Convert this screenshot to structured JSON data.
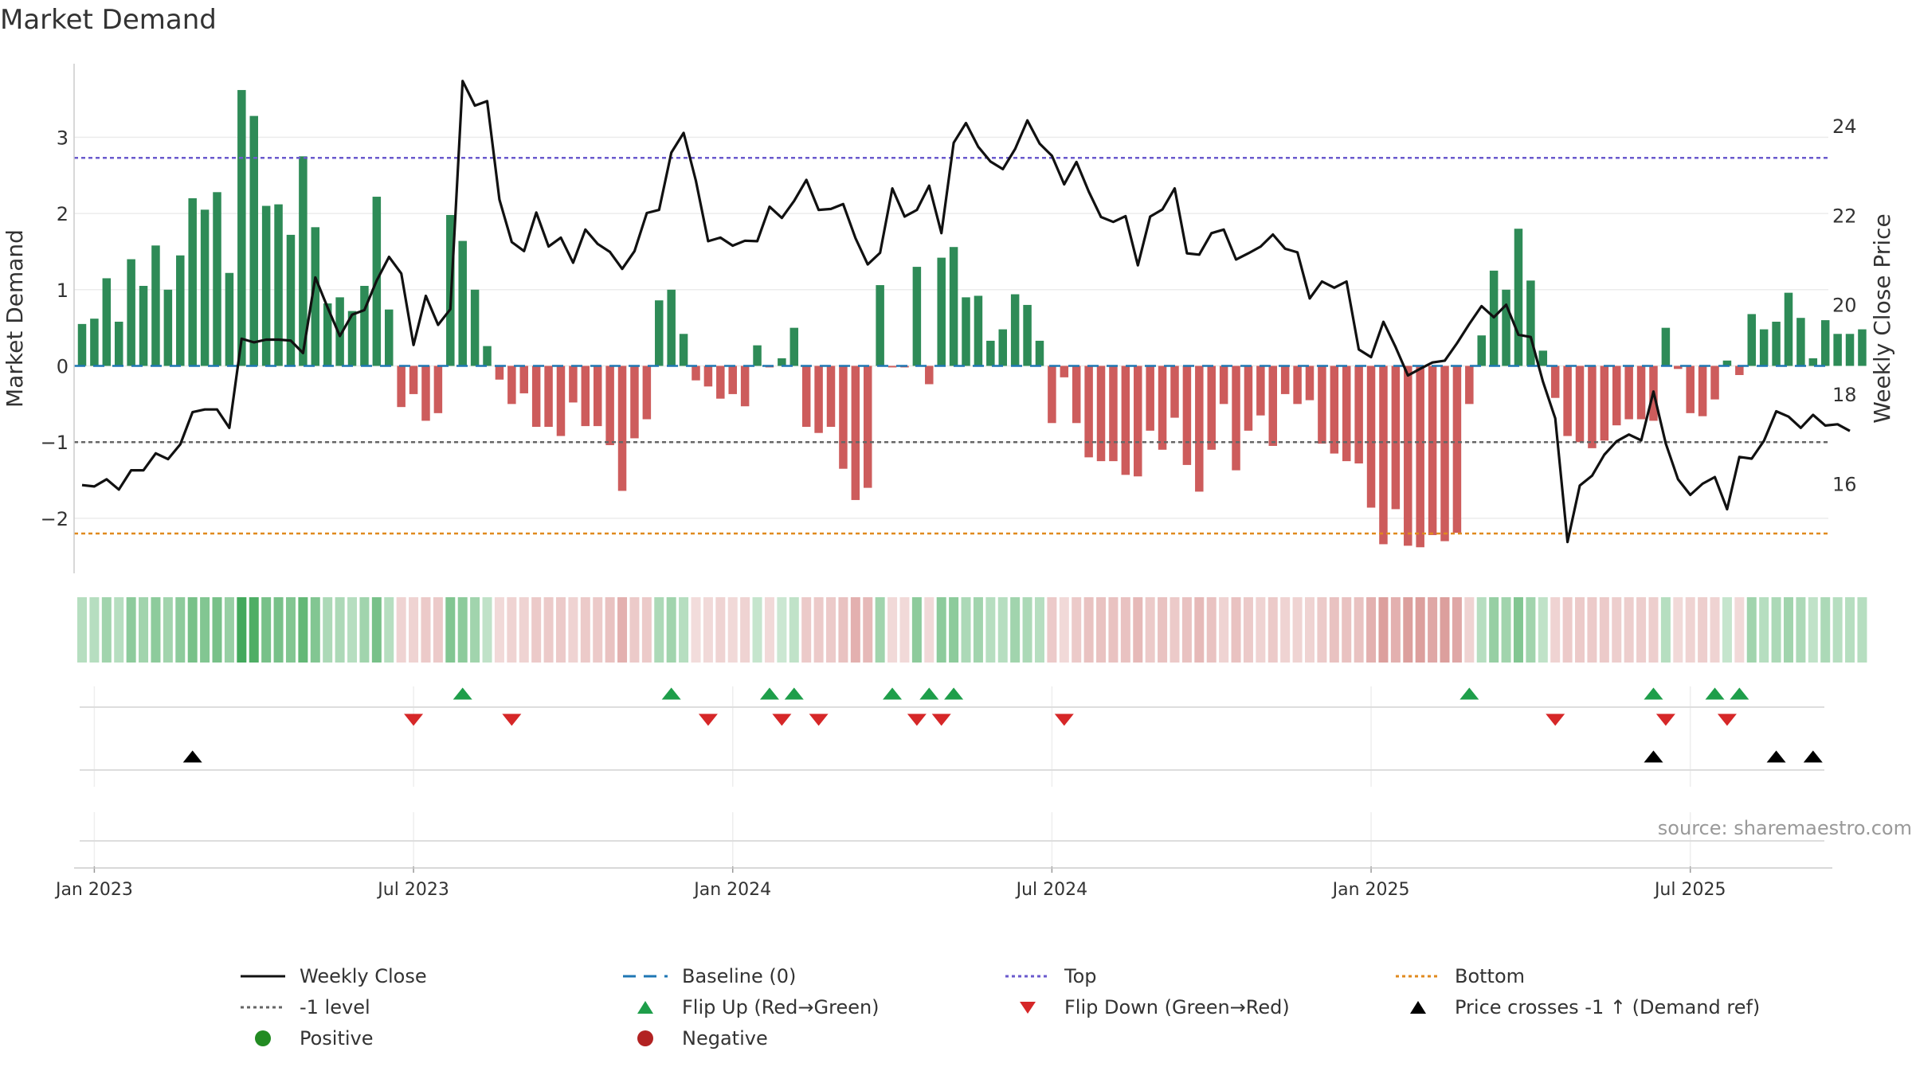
{
  "title": "Market Demand",
  "source": "source: sharemaestro.com",
  "colors": {
    "positive": "#2e8b57",
    "negative": "#cd5c5c",
    "price": "#111111",
    "top": "#6a5acd",
    "bottom": "#e08a1e",
    "minus1": "#666666",
    "baseline": "#1f77b4",
    "flip_up": "#1e9e4a",
    "flip_down": "#d62728",
    "cross": "#000000"
  },
  "legend": [
    {
      "key": "weekly_close",
      "label": "Weekly Close"
    },
    {
      "key": "baseline",
      "label": "Baseline (0)"
    },
    {
      "key": "top",
      "label": "Top"
    },
    {
      "key": "bottom",
      "label": "Bottom"
    },
    {
      "key": "minus1",
      "label": "-1 level"
    },
    {
      "key": "flip_up",
      "label": "Flip Up (Red→Green)"
    },
    {
      "key": "flip_down",
      "label": "Flip Down (Green→Red)"
    },
    {
      "key": "cross",
      "label": "Price crosses -1 ↑ (Demand ref)"
    },
    {
      "key": "positive",
      "label": "Positive"
    },
    {
      "key": "negative",
      "label": "Negative"
    }
  ],
  "chart_data": {
    "type": "bar+line",
    "title": "Market Demand",
    "ylabel": "Market Demand",
    "y2label": "Weekly Close Price",
    "ylim": [
      -2.7,
      3.9
    ],
    "y2lim": [
      14.0,
      25.4
    ],
    "yticks": [
      3,
      2,
      1,
      0,
      -1,
      -2
    ],
    "ytick_labels": [
      "3",
      "2",
      "1",
      "0",
      "−1",
      "−2"
    ],
    "y2ticks": [
      24,
      22,
      20,
      18,
      16
    ],
    "y2tick_labels": [
      "24",
      "22",
      "20",
      "18",
      "16"
    ],
    "xticks": [
      1,
      27,
      53,
      79,
      105,
      131
    ],
    "xtick_labels": [
      "Jan 2023",
      "Jul 2023",
      "Jan 2024",
      "Jul 2024",
      "Jan 2025",
      "Jul 2025"
    ],
    "reference_lines": {
      "top": 2.73,
      "bottom": -2.2,
      "minus1": -1.0,
      "baseline": 0
    },
    "weeks": 145,
    "demand": [
      0.55,
      0.62,
      1.15,
      0.58,
      1.4,
      1.05,
      1.58,
      1.0,
      1.45,
      2.2,
      2.05,
      2.28,
      1.22,
      3.62,
      3.28,
      2.1,
      2.12,
      1.72,
      2.75,
      1.82,
      0.82,
      0.9,
      0.72,
      1.05,
      2.22,
      0.74,
      -0.54,
      -0.37,
      -0.72,
      -0.62,
      1.98,
      1.64,
      1.0,
      0.26,
      -0.18,
      -0.5,
      -0.36,
      -0.8,
      -0.8,
      -0.92,
      -0.48,
      -0.79,
      -0.79,
      -1.04,
      -1.64,
      -0.95,
      -0.7,
      0.86,
      1.0,
      0.42,
      -0.19,
      -0.27,
      -0.43,
      -0.37,
      -0.53,
      0.27,
      -0.02,
      0.1,
      0.5,
      -0.8,
      -0.88,
      -0.8,
      -1.35,
      -1.76,
      -1.6,
      1.06,
      -0.02,
      -0.02,
      1.3,
      -0.24,
      1.42,
      1.56,
      0.9,
      0.92,
      0.33,
      0.48,
      0.94,
      0.8,
      0.33,
      -0.75,
      -0.15,
      -0.75,
      -1.2,
      -1.25,
      -1.25,
      -1.43,
      -1.45,
      -0.85,
      -1.1,
      -0.68,
      -1.3,
      -1.65,
      -1.1,
      -0.5,
      -1.37,
      -0.85,
      -0.65,
      -1.05,
      -0.37,
      -0.5,
      -0.45,
      -1.02,
      -1.15,
      -1.25,
      -1.28,
      -1.86,
      -2.34,
      -1.88,
      -2.36,
      -2.38,
      -2.22,
      -2.3,
      -2.19,
      -0.5,
      0.4,
      1.25,
      1.0,
      1.8,
      1.12,
      0.2,
      -0.42,
      -0.92,
      -1.0,
      -1.08,
      -0.98,
      -0.78,
      -0.7,
      -0.7,
      -0.72,
      0.5,
      -0.04,
      -0.62,
      -0.66,
      -0.44,
      0.07,
      -0.12,
      0.68,
      0.48,
      0.58,
      0.96,
      0.63,
      0.1,
      0.6,
      0.42,
      0.42,
      0.48
    ],
    "close": [
      15.97,
      15.94,
      16.1,
      15.87,
      16.3,
      16.3,
      16.68,
      16.55,
      16.88,
      17.6,
      17.66,
      17.66,
      17.25,
      19.24,
      19.16,
      19.22,
      19.22,
      19.2,
      18.92,
      20.61,
      19.94,
      19.3,
      19.78,
      19.88,
      20.54,
      21.07,
      20.7,
      19.1,
      20.2,
      19.55,
      19.9,
      25.0,
      24.45,
      24.55,
      22.35,
      21.4,
      21.2,
      22.06,
      21.3,
      21.5,
      20.94,
      21.68,
      21.36,
      21.18,
      20.8,
      21.2,
      22.05,
      22.12,
      23.4,
      23.84,
      22.77,
      21.42,
      21.5,
      21.32,
      21.43,
      21.42,
      22.19,
      21.94,
      22.32,
      22.79,
      22.12,
      22.14,
      22.25,
      21.49,
      20.9,
      21.16,
      22.6,
      21.97,
      22.12,
      22.66,
      21.6,
      23.62,
      24.06,
      23.53,
      23.2,
      23.03,
      23.48,
      24.12,
      23.6,
      23.33,
      22.69,
      23.19,
      22.53,
      21.96,
      21.85,
      21.98,
      20.88,
      21.97,
      22.13,
      22.6,
      21.15,
      21.12,
      21.6,
      21.68,
      21.01,
      21.15,
      21.3,
      21.57,
      21.25,
      21.17,
      20.14,
      20.52,
      20.38,
      20.52,
      19.0,
      18.83,
      19.62,
      19.05,
      18.42,
      18.57,
      18.71,
      18.75,
      19.14,
      19.57,
      19.97,
      19.72,
      20.0,
      19.33,
      19.28,
      18.28,
      17.46,
      14.7,
      15.96,
      16.18,
      16.65,
      16.95,
      17.1,
      16.97,
      18.06,
      16.9,
      16.1,
      15.75,
      16.0,
      16.15,
      15.43,
      16.6,
      16.56,
      16.96,
      17.62,
      17.5,
      17.25,
      17.54,
      17.3,
      17.33,
      17.18
    ],
    "strip_alpha": [
      0.35,
      0.35,
      0.45,
      0.35,
      0.55,
      0.45,
      0.55,
      0.45,
      0.55,
      0.65,
      0.6,
      0.65,
      0.5,
      0.9,
      0.85,
      0.65,
      0.65,
      0.6,
      0.75,
      0.6,
      0.4,
      0.4,
      0.35,
      0.45,
      0.65,
      0.35,
      0.25,
      0.25,
      0.3,
      0.3,
      0.6,
      0.55,
      0.45,
      0.3,
      0.22,
      0.25,
      0.25,
      0.3,
      0.3,
      0.3,
      0.25,
      0.3,
      0.3,
      0.35,
      0.45,
      0.3,
      0.3,
      0.4,
      0.45,
      0.35,
      0.2,
      0.22,
      0.25,
      0.22,
      0.25,
      0.28,
      0.22,
      0.25,
      0.3,
      0.3,
      0.3,
      0.3,
      0.35,
      0.45,
      0.4,
      0.45,
      0.22,
      0.22,
      0.55,
      0.22,
      0.55,
      0.55,
      0.4,
      0.45,
      0.35,
      0.35,
      0.45,
      0.4,
      0.35,
      0.3,
      0.22,
      0.3,
      0.35,
      0.35,
      0.35,
      0.35,
      0.4,
      0.3,
      0.35,
      0.3,
      0.35,
      0.4,
      0.35,
      0.25,
      0.35,
      0.3,
      0.25,
      0.3,
      0.25,
      0.25,
      0.25,
      0.3,
      0.35,
      0.35,
      0.35,
      0.45,
      0.55,
      0.45,
      0.55,
      0.55,
      0.5,
      0.55,
      0.5,
      0.25,
      0.35,
      0.5,
      0.45,
      0.6,
      0.45,
      0.3,
      0.25,
      0.3,
      0.3,
      0.3,
      0.3,
      0.28,
      0.28,
      0.28,
      0.28,
      0.35,
      0.22,
      0.25,
      0.28,
      0.25,
      0.28,
      0.22,
      0.45,
      0.35,
      0.4,
      0.45,
      0.4,
      0.3,
      0.4,
      0.35,
      0.35,
      0.35
    ],
    "flip_up_weeks": [
      31,
      48,
      56,
      58,
      66,
      69,
      71,
      113,
      128,
      133,
      135
    ],
    "flip_down_weeks": [
      27,
      35,
      51,
      57,
      60,
      68,
      70,
      80,
      120,
      129,
      134
    ],
    "cross_weeks": [
      9,
      128,
      138,
      141
    ]
  }
}
